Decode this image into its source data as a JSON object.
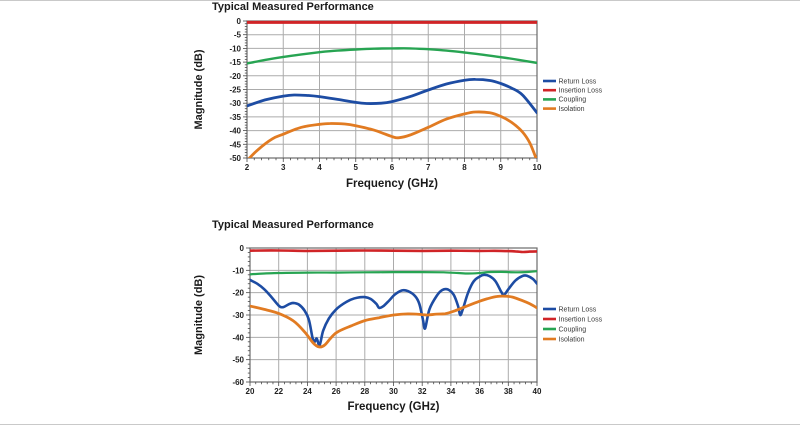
{
  "page": {
    "background": "#ffffff",
    "edge_line_color": "#c9c9c9"
  },
  "style": {
    "grid_color": "#ababab",
    "border_color": "#6b6b6b",
    "tick_color": "#4a4a4a",
    "tick_label_color": "#222222",
    "axis_label_color": "#1a1a1a",
    "legend_text_color": "#3a3a3a"
  },
  "chart_data": [
    {
      "type": "line",
      "title": "Typical Measured Performance",
      "xlabel": "Frequency  (GHz)",
      "ylabel": "Magnitude (dB)",
      "xlim": [
        2,
        10
      ],
      "ylim": [
        -50,
        0
      ],
      "x_ticks": [
        2,
        3,
        4,
        5,
        6,
        7,
        8,
        9,
        10
      ],
      "y_ticks": [
        0,
        -5,
        -10,
        -15,
        -20,
        -25,
        -30,
        -35,
        -40,
        -45,
        -50
      ],
      "x_minor_step": 0.2,
      "y_minor_step": 1,
      "grid": true,
      "legend_position": "right",
      "series": [
        {
          "name": "Return Loss",
          "color": "#1d4ca3",
          "width": 2.8,
          "x": [
            2,
            2.5,
            3,
            3.3,
            3.7,
            4,
            4.5,
            5,
            5.3,
            5.7,
            6,
            6.5,
            7,
            7.5,
            8,
            8.3,
            8.7,
            9,
            9.3,
            9.6,
            10
          ],
          "y": [
            -31,
            -28.8,
            -27.4,
            -27,
            -27.2,
            -27.6,
            -28.6,
            -29.7,
            -30.1,
            -30,
            -29.4,
            -27.6,
            -25.2,
            -23,
            -21.6,
            -21.3,
            -21.7,
            -22.8,
            -24.5,
            -27,
            -33.5
          ]
        },
        {
          "name": "Insertion Loss",
          "color": "#d02427",
          "width": 3,
          "x": [
            2,
            4,
            6,
            8,
            10
          ],
          "y": [
            -0.5,
            -0.5,
            -0.5,
            -0.5,
            -0.5
          ]
        },
        {
          "name": "Coupling",
          "color": "#27a452",
          "width": 2.4,
          "x": [
            2,
            2.5,
            3,
            3.5,
            4,
            4.5,
            5,
            5.5,
            6,
            6.5,
            7,
            7.5,
            8,
            8.5,
            9,
            9.5,
            10
          ],
          "y": [
            -15.5,
            -14.2,
            -13.1,
            -12.2,
            -11.4,
            -10.8,
            -10.4,
            -10.1,
            -10,
            -10,
            -10.3,
            -10.8,
            -11.5,
            -12.3,
            -13.2,
            -14.2,
            -15.3
          ]
        },
        {
          "name": "Isolation",
          "color": "#e17b22",
          "width": 2.8,
          "x": [
            2,
            2.3,
            2.7,
            3,
            3.5,
            4,
            4.3,
            4.7,
            5,
            5.5,
            6,
            6.2,
            6.5,
            7,
            7.5,
            8,
            8.3,
            8.7,
            9,
            9.3,
            9.6,
            9.8,
            10
          ],
          "y": [
            -51,
            -47,
            -43,
            -41.3,
            -38.8,
            -37.7,
            -37.4,
            -37.6,
            -38.2,
            -39.8,
            -42.2,
            -42.6,
            -41.6,
            -38.8,
            -35.8,
            -33.9,
            -33.2,
            -33.5,
            -34.8,
            -37,
            -40.5,
            -44.5,
            -51
          ]
        }
      ]
    },
    {
      "type": "line",
      "title": "Typical Measured Performance",
      "xlabel": "Frequency  (GHz)",
      "ylabel": "Magnitude  (dB)",
      "xlim": [
        20,
        40
      ],
      "ylim": [
        -60,
        0
      ],
      "x_ticks": [
        20,
        22,
        24,
        26,
        28,
        30,
        32,
        34,
        36,
        38,
        40
      ],
      "y_ticks": [
        0,
        -10,
        -20,
        -30,
        -40,
        -50,
        -60
      ],
      "x_minor_step": 0.4,
      "y_minor_step": 2,
      "grid": true,
      "legend_position": "right",
      "series": [
        {
          "name": "Return Loss",
          "color": "#1d4ca3",
          "width": 2.6,
          "x": [
            20,
            20.5,
            21,
            21.5,
            22,
            22.3,
            22.7,
            23,
            23.4,
            23.8,
            24.1,
            24.35,
            24.5,
            24.65,
            24.85,
            25.1,
            25.5,
            26,
            26.5,
            27,
            27.5,
            28,
            28.4,
            28.8,
            29,
            29.3,
            29.7,
            30.1,
            30.6,
            31,
            31.5,
            31.8,
            32.05,
            32.2,
            32.5,
            33,
            33.4,
            33.8,
            34.2,
            34.5,
            34.65,
            34.85,
            35.2,
            35.6,
            36,
            36.3,
            36.7,
            37.1,
            37.5,
            37.7,
            38,
            38.5,
            39,
            39.3,
            39.7,
            40
          ],
          "y": [
            -14.3,
            -16,
            -18.5,
            -22,
            -25.8,
            -26.5,
            -25.2,
            -24.6,
            -25.3,
            -28,
            -32,
            -40,
            -42,
            -40.5,
            -43.5,
            -37,
            -31.5,
            -27.5,
            -25,
            -23.2,
            -22.2,
            -22,
            -22.8,
            -25,
            -26.8,
            -26,
            -23.5,
            -20.8,
            -19,
            -19.3,
            -21.5,
            -25,
            -32,
            -36,
            -27.5,
            -21.5,
            -18.8,
            -18.6,
            -21,
            -26,
            -30,
            -27,
            -20,
            -14.8,
            -12.8,
            -12,
            -12.6,
            -14.8,
            -19.5,
            -21,
            -18.5,
            -14.5,
            -12.5,
            -12.4,
            -13.8,
            -16
          ]
        },
        {
          "name": "Insertion Loss",
          "color": "#d02427",
          "width": 2.6,
          "x": [
            20,
            22,
            24,
            26,
            28,
            30,
            32,
            34,
            36,
            37.5,
            38.5,
            39,
            39.5,
            40
          ],
          "y": [
            -1.2,
            -1.1,
            -1.3,
            -1.2,
            -1.1,
            -1.2,
            -1.3,
            -1.2,
            -1.3,
            -1.3,
            -1.5,
            -1.8,
            -1.6,
            -1.5
          ]
        },
        {
          "name": "Coupling",
          "color": "#27a452",
          "width": 2.2,
          "x": [
            20,
            21,
            22,
            24,
            26,
            28,
            30,
            32,
            33.5,
            34.5,
            35.2,
            36,
            36.6,
            37.5,
            38.5,
            39.2,
            40
          ],
          "y": [
            -11.8,
            -11.4,
            -11.2,
            -11,
            -11,
            -10.9,
            -10.8,
            -10.8,
            -10.9,
            -11.2,
            -11.4,
            -11.2,
            -10.8,
            -10.7,
            -10.9,
            -10.8,
            -10.4
          ]
        },
        {
          "name": "Isolation",
          "color": "#e17b22",
          "width": 2.8,
          "x": [
            20,
            21,
            22,
            23,
            23.8,
            24.4,
            24.8,
            25.2,
            25.6,
            26,
            26.5,
            27,
            28,
            29,
            30,
            31,
            32,
            32.4,
            33,
            33.6,
            34.2,
            35,
            35.8,
            36.5,
            37.2,
            37.8,
            38.3,
            39,
            39.5,
            40
          ],
          "y": [
            -26,
            -27.5,
            -29.3,
            -32.5,
            -37.5,
            -42.5,
            -44.3,
            -43.5,
            -40.5,
            -38,
            -36.3,
            -35,
            -32.5,
            -31.2,
            -30,
            -29.5,
            -29.8,
            -30,
            -29.6,
            -29.4,
            -28.3,
            -26.3,
            -24.3,
            -22.8,
            -21.7,
            -21.6,
            -22,
            -23.6,
            -25,
            -26.8
          ]
        }
      ]
    }
  ]
}
